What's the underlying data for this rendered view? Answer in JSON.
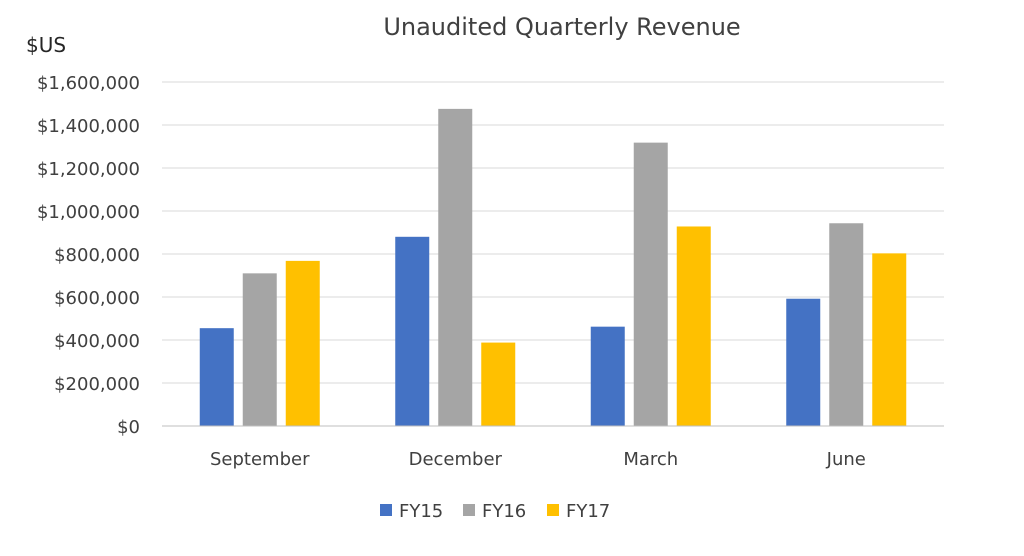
{
  "chart_data": {
    "type": "bar",
    "title": "Unaudited Quarterly Revenue",
    "y_unit_label": "$US",
    "categories": [
      "September",
      "December",
      "March",
      "June"
    ],
    "series": [
      {
        "name": "FY15",
        "color": "#4472C4",
        "values": [
          455000,
          880000,
          462000,
          592000
        ]
      },
      {
        "name": "FY16",
        "color": "#A5A5A5",
        "values": [
          710000,
          1475000,
          1318000,
          943000
        ]
      },
      {
        "name": "FY17",
        "color": "#FFC000",
        "values": [
          768000,
          388000,
          928000,
          803000
        ]
      }
    ],
    "ylim": [
      0,
      1600000
    ],
    "yticks": [
      0,
      200000,
      400000,
      600000,
      800000,
      1000000,
      1200000,
      1400000,
      1600000
    ],
    "ytick_labels": [
      "$0",
      "$200,000",
      "$400,000",
      "$600,000",
      "$800,000",
      "$1,000,000",
      "$1,200,000",
      "$1,400,000",
      "$1,600,000"
    ],
    "grid": true,
    "legend_position": "bottom"
  }
}
